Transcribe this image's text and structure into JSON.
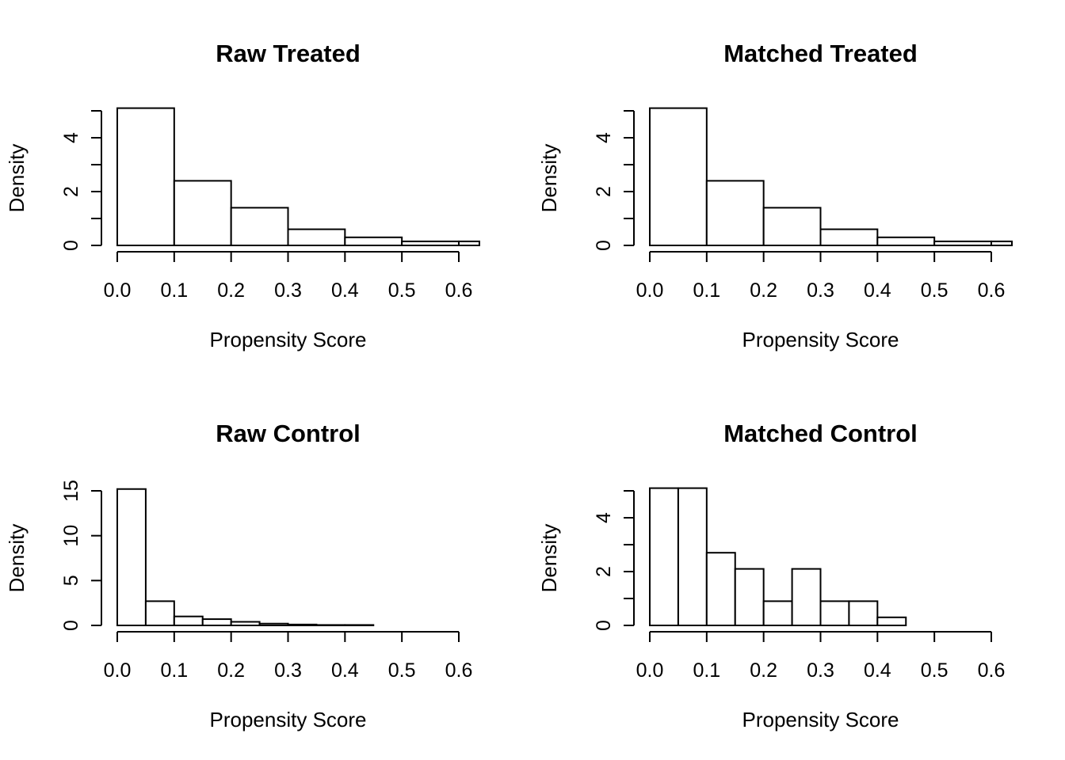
{
  "chart_data": [
    {
      "id": "raw-treated",
      "type": "bar",
      "title": "Raw Treated",
      "xlabel": "Propensity Score",
      "ylabel": "Density",
      "xlim": [
        0,
        0.6
      ],
      "ylim": [
        0,
        5
      ],
      "xticks": [
        "0.0",
        "0.1",
        "0.2",
        "0.3",
        "0.4",
        "0.5",
        "0.6"
      ],
      "yticks": [
        "0",
        "2",
        "4"
      ],
      "bin_width": 0.1,
      "bins": [
        {
          "start": 0.0,
          "end": 0.1,
          "density": 5.1
        },
        {
          "start": 0.1,
          "end": 0.2,
          "density": 2.4
        },
        {
          "start": 0.2,
          "end": 0.3,
          "density": 1.4
        },
        {
          "start": 0.3,
          "end": 0.4,
          "density": 0.6
        },
        {
          "start": 0.4,
          "end": 0.5,
          "density": 0.3
        },
        {
          "start": 0.5,
          "end": 0.6,
          "density": 0.15
        },
        {
          "start": 0.6,
          "end": 0.7,
          "density": 0.15
        }
      ]
    },
    {
      "id": "matched-treated",
      "type": "bar",
      "title": "Matched Treated",
      "xlabel": "Propensity Score",
      "ylabel": "Density",
      "xlim": [
        0,
        0.6
      ],
      "ylim": [
        0,
        5
      ],
      "xticks": [
        "0.0",
        "0.1",
        "0.2",
        "0.3",
        "0.4",
        "0.5",
        "0.6"
      ],
      "yticks": [
        "0",
        "2",
        "4"
      ],
      "bin_width": 0.1,
      "bins": [
        {
          "start": 0.0,
          "end": 0.1,
          "density": 5.1
        },
        {
          "start": 0.1,
          "end": 0.2,
          "density": 2.4
        },
        {
          "start": 0.2,
          "end": 0.3,
          "density": 1.4
        },
        {
          "start": 0.3,
          "end": 0.4,
          "density": 0.6
        },
        {
          "start": 0.4,
          "end": 0.5,
          "density": 0.3
        },
        {
          "start": 0.5,
          "end": 0.6,
          "density": 0.15
        },
        {
          "start": 0.6,
          "end": 0.7,
          "density": 0.15
        }
      ]
    },
    {
      "id": "raw-control",
      "type": "bar",
      "title": "Raw Control",
      "xlabel": "Propensity Score",
      "ylabel": "Density",
      "xlim": [
        0,
        0.6
      ],
      "ylim": [
        0,
        15
      ],
      "xticks": [
        "0.0",
        "0.1",
        "0.2",
        "0.3",
        "0.4",
        "0.5",
        "0.6"
      ],
      "yticks": [
        "0",
        "5",
        "10",
        "15"
      ],
      "bin_width": 0.05,
      "bins": [
        {
          "start": 0.0,
          "end": 0.05,
          "density": 15.2
        },
        {
          "start": 0.05,
          "end": 0.1,
          "density": 2.7
        },
        {
          "start": 0.1,
          "end": 0.15,
          "density": 1.0
        },
        {
          "start": 0.15,
          "end": 0.2,
          "density": 0.7
        },
        {
          "start": 0.2,
          "end": 0.25,
          "density": 0.4
        },
        {
          "start": 0.25,
          "end": 0.3,
          "density": 0.2
        },
        {
          "start": 0.3,
          "end": 0.35,
          "density": 0.1
        },
        {
          "start": 0.35,
          "end": 0.4,
          "density": 0.05
        },
        {
          "start": 0.4,
          "end": 0.45,
          "density": 0.05
        }
      ]
    },
    {
      "id": "matched-control",
      "type": "bar",
      "title": "Matched Control",
      "xlabel": "Propensity Score",
      "ylabel": "Density",
      "xlim": [
        0,
        0.6
      ],
      "ylim": [
        0,
        5
      ],
      "xticks": [
        "0.0",
        "0.1",
        "0.2",
        "0.3",
        "0.4",
        "0.5",
        "0.6"
      ],
      "yticks": [
        "0",
        "2",
        "4"
      ],
      "bin_width": 0.05,
      "bins": [
        {
          "start": 0.0,
          "end": 0.05,
          "density": 5.1
        },
        {
          "start": 0.05,
          "end": 0.1,
          "density": 5.1
        },
        {
          "start": 0.1,
          "end": 0.15,
          "density": 2.7
        },
        {
          "start": 0.15,
          "end": 0.2,
          "density": 2.1
        },
        {
          "start": 0.2,
          "end": 0.25,
          "density": 0.9
        },
        {
          "start": 0.25,
          "end": 0.3,
          "density": 2.1
        },
        {
          "start": 0.3,
          "end": 0.35,
          "density": 0.9
        },
        {
          "start": 0.35,
          "end": 0.4,
          "density": 0.9
        },
        {
          "start": 0.4,
          "end": 0.45,
          "density": 0.3
        }
      ]
    }
  ]
}
